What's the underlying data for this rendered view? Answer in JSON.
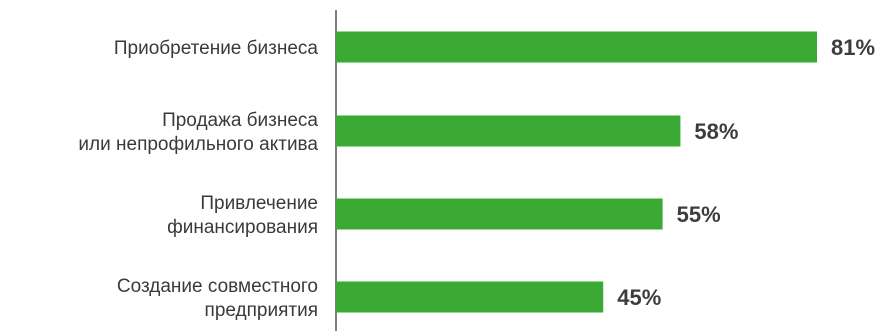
{
  "chart_data": {
    "type": "bar",
    "orientation": "horizontal",
    "categories": [
      [
        "Приобретение бизнеса"
      ],
      [
        "Продажа бизнеса",
        "или непрофильного актива"
      ],
      [
        "Привлечение",
        "финансирования"
      ],
      [
        "Создание совместного",
        "предприятия"
      ]
    ],
    "values": [
      81,
      58,
      55,
      45
    ],
    "value_labels": [
      "81%",
      "58%",
      "55%",
      "45%"
    ],
    "unit": "%",
    "xlim": [
      0,
      100
    ],
    "grid": false,
    "legend": "none",
    "bar_color": "#3aaa35",
    "axis_color": "#555555"
  }
}
